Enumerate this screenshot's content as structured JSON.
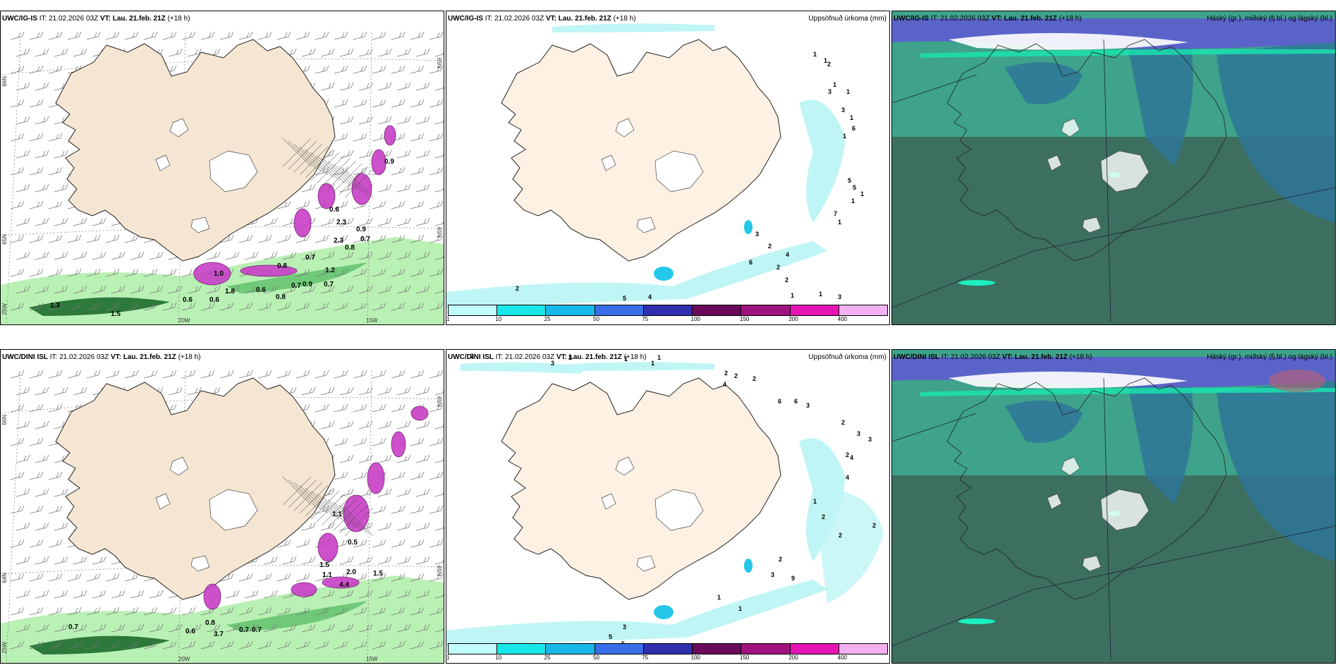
{
  "panels": [
    {
      "model": "UWC/IG-IS",
      "it_label": "IT:",
      "it_value": "21.02.2026 03Z",
      "vt_label": "VT:",
      "vt_value": "Lau. 21.feb. 21Z",
      "lead": "(+18 h)",
      "right_title": "",
      "axis": {
        "lat_left_top": "66N",
        "lat_left_mid": "65N",
        "lat_left_bot": "25W",
        "lat_right_top": "N59",
        "lat_right_mid": "N59",
        "lon_a": "20W",
        "lon_b": "15W"
      },
      "values": [
        "1.3",
        "1.5",
        "1.0",
        "1.8",
        "0.6",
        "0.8",
        "0.7",
        "0.9",
        "0.7",
        "0.6",
        "0.6",
        "0.8",
        "0.7",
        "1.2",
        "2.3",
        "0.8",
        "0.9",
        "2.3",
        "0.6",
        "0.7",
        "0.9"
      ]
    },
    {
      "model": "UWC/IG-IS",
      "it_label": "IT:",
      "it_value": "21.02.2026 03Z",
      "vt_label": "VT:",
      "vt_value": "Lau. 21.feb. 21Z",
      "lead": "(+18 h)",
      "right_title": "Uppsöfnuð úrkoma (mm)",
      "values": [
        "1",
        "1",
        "2",
        "1",
        "3",
        "1",
        "3",
        "1",
        "6",
        "1",
        "5",
        "5",
        "1",
        "1",
        "7",
        "1",
        "3",
        "2",
        "6",
        "4",
        "3",
        "1",
        "1",
        "2",
        "2",
        "2",
        "5",
        "4"
      ]
    },
    {
      "model": "UWC/IG-IS",
      "it_label": "IT:",
      "it_value": "21.02.2026 03Z",
      "vt_label": "VT:",
      "vt_value": "Lau. 21.feb. 21Z",
      "lead": "(+18 h)",
      "right_title": "Háský (gr.), miðský (fj.bl.) og lágský (bl.)"
    },
    {
      "model": "UWC/DINI ISL",
      "it_label": "IT:",
      "it_value": "21.02.2026 03Z",
      "vt_label": "VT:",
      "vt_value": "Lau. 21.feb. 21Z",
      "lead": "(+18 h)",
      "right_title": "",
      "axis": {
        "lat_left_top": "66N",
        "lat_left_mid": "64N",
        "lat_left_bot": "25W",
        "lat_right_top": "N59",
        "lat_right_mid": "N59",
        "lon_a": "20W",
        "lon_b": "15W"
      },
      "values": [
        "0.7",
        "0.6",
        "0.8",
        "3.7",
        "0.7",
        "0.7",
        "1.5",
        "1.1",
        "2.0",
        "1.5",
        "4.4",
        "1.1",
        "0.5"
      ]
    },
    {
      "model": "UWC/DINI ISL",
      "it_label": "IT:",
      "it_value": "21.02.2026 03Z",
      "vt_label": "VT:",
      "vt_value": "Lau. 21.feb. 21Z",
      "lead": "(+18 h)",
      "right_title": "Uppsöfnuð úrkoma (mm)",
      "values": [
        "2",
        "3",
        "2",
        "1",
        "1",
        "1",
        "2",
        "2",
        "4",
        "2",
        "6",
        "6",
        "3",
        "2",
        "3",
        "4",
        "4",
        "3",
        "2",
        "1",
        "2",
        "2",
        "2",
        "9",
        "2",
        "1",
        "1",
        "3",
        "5",
        "5",
        "3"
      ]
    },
    {
      "model": "UWC/DINI ISL",
      "it_label": "IT:",
      "it_value": "21.02.2026 03Z",
      "vt_label": "VT:",
      "vt_value": "Lau. 21.feb. 21Z",
      "lead": "(+18 h)",
      "right_title": "Háský (gr.), miðský (fj.bl.) og lágský (bl.)"
    }
  ],
  "colorbar": {
    "ticks": [
      "1",
      "10",
      "25",
      "50",
      "75",
      "100",
      "150",
      "200",
      "400"
    ],
    "colors": [
      "#c2fbfb",
      "#17e7e7",
      "#18b8e8",
      "#3a6ee8",
      "#2f2fb0",
      "#6a0a5a",
      "#a0127e",
      "#e614b4",
      "#f2b0f0"
    ]
  },
  "colors": {
    "land": "#f5e6d3",
    "land_precip": "#fdf1e4",
    "ocean_green": "#b9f0b4",
    "ocean_green_dark": "#1e6b2e",
    "magenta": "#c83fc6",
    "cyan": "#bff5f5",
    "cloud_teal": "#3ea38a",
    "cloud_dark": "#3c5e52",
    "cloud_blue": "#2f7698"
  }
}
